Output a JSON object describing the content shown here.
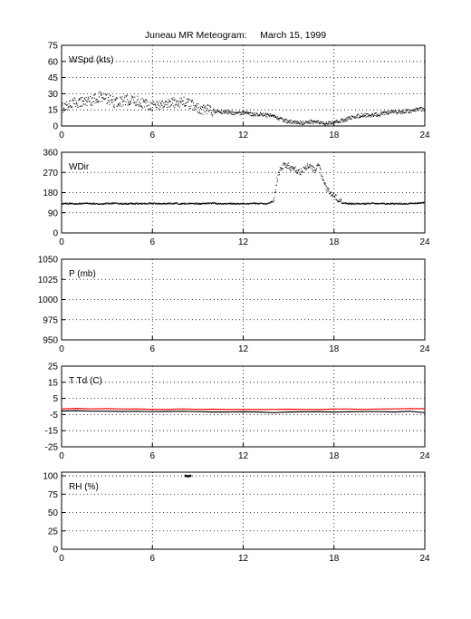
{
  "title": {
    "text": "Juneau MR Meteogram:     March 15, 1999"
  },
  "colors": {
    "axis": "#000000",
    "grid": "#000000",
    "data": "#000000",
    "temperature": "#ff0000",
    "dewpoint": "#000000"
  },
  "chart_data": [
    {
      "type": "scatter",
      "label": "WSpd (kts)",
      "x_ticks": [
        "0",
        "6",
        "12",
        "18",
        "24"
      ],
      "y_ticks": [
        "75",
        "60",
        "45",
        "30",
        "15",
        "0"
      ],
      "xlim": [
        0,
        24
      ],
      "ylim": [
        0,
        75
      ],
      "grid": true,
      "series": [
        {
          "x": [
            0,
            0.5,
            1,
            1.5,
            2,
            2.5,
            3,
            3.5,
            4,
            4.5,
            5,
            5.5,
            6,
            6.5,
            7,
            7.5,
            8,
            8.5,
            9,
            9.5,
            10,
            10.5,
            11,
            11.5,
            12,
            12.5,
            13,
            13.5,
            14,
            14.5,
            15,
            15.5,
            16,
            16.5,
            17,
            17.5,
            18,
            18.5,
            19,
            19.5,
            20,
            20.5,
            21,
            21.5,
            22,
            22.5,
            23,
            23.5,
            24
          ],
          "y": [
            17,
            20,
            22,
            23,
            24,
            27,
            25,
            22,
            23,
            24,
            23,
            21,
            19,
            20,
            21,
            22,
            23,
            20,
            17,
            15,
            14,
            13,
            13,
            12,
            12,
            11,
            11,
            10,
            9,
            6,
            4,
            3,
            3,
            4,
            3,
            2,
            3,
            5,
            7,
            9,
            10,
            10,
            11,
            12,
            13,
            13,
            14,
            15,
            16
          ]
        }
      ]
    },
    {
      "type": "scatter",
      "label": "WDir",
      "x_ticks": [
        "0",
        "6",
        "12",
        "18",
        "24"
      ],
      "y_ticks": [
        "360",
        "270",
        "180",
        "90",
        "0"
      ],
      "xlim": [
        0,
        24
      ],
      "ylim": [
        0,
        360
      ],
      "grid": true,
      "series": [
        {
          "x": [
            0,
            0.5,
            1,
            1.5,
            2,
            2.5,
            3,
            3.5,
            4,
            4.5,
            5,
            5.5,
            6,
            6.5,
            7,
            7.5,
            8,
            8.5,
            9,
            9.5,
            10,
            10.5,
            11,
            11.5,
            12,
            12.5,
            13,
            13.5,
            14,
            14.25,
            14.5,
            14.75,
            15,
            15.25,
            15.5,
            15.75,
            16,
            16.25,
            16.5,
            16.75,
            17,
            17.25,
            17.5,
            17.75,
            18,
            18.25,
            18.5,
            19,
            19.5,
            20,
            20.5,
            21,
            21.5,
            22,
            22.5,
            23,
            23.5,
            24
          ],
          "y": [
            130,
            131,
            130,
            132,
            131,
            130,
            131,
            132,
            130,
            131,
            130,
            131,
            132,
            130,
            131,
            132,
            130,
            131,
            130,
            131,
            132,
            130,
            131,
            130,
            131,
            132,
            131,
            130,
            140,
            240,
            290,
            305,
            300,
            285,
            280,
            270,
            285,
            300,
            295,
            280,
            310,
            240,
            200,
            180,
            170,
            150,
            135,
            130,
            131,
            130,
            132,
            131,
            130,
            131,
            130,
            131,
            132,
            135
          ]
        }
      ]
    },
    {
      "type": "line",
      "label": "P (mb)",
      "x_ticks": [
        "0",
        "6",
        "12",
        "18",
        "24"
      ],
      "y_ticks": [
        "1050",
        "1025",
        "1000",
        "975",
        "950"
      ],
      "xlim": [
        0,
        24
      ],
      "ylim": [
        950,
        1050
      ],
      "grid": true,
      "series": []
    },
    {
      "type": "line",
      "label": "T Td (C)",
      "x_ticks": [
        "0",
        "6",
        "12",
        "18",
        "24"
      ],
      "y_ticks": [
        "25",
        "15",
        "5",
        "-5",
        "-15",
        "-25"
      ],
      "xlim": [
        0,
        24
      ],
      "ylim": [
        -25,
        25
      ],
      "grid": true,
      "series": [
        {
          "role": "temperature",
          "x": [
            0,
            1,
            2,
            3,
            4,
            5,
            6,
            7,
            8,
            9,
            10,
            11,
            12,
            13,
            14,
            15,
            16,
            17,
            18,
            19,
            20,
            21,
            22,
            23,
            24
          ],
          "y": [
            -1.5,
            -1.2,
            -1.5,
            -1.3,
            -1.6,
            -1.5,
            -1.8,
            -1.8,
            -1.5,
            -1.8,
            -1.7,
            -1.9,
            -1.8,
            -1.9,
            -1.8,
            -1.7,
            -1.8,
            -1.9,
            -1.6,
            -1.6,
            -1.8,
            -1.6,
            -1.5,
            -1.3,
            -1.4
          ]
        },
        {
          "role": "dewpoint",
          "x": [
            0,
            1,
            2,
            3,
            4,
            5,
            6,
            7,
            8,
            9,
            10,
            11,
            12,
            13,
            14,
            15,
            16,
            17,
            18,
            19,
            20,
            21,
            22,
            23,
            24
          ],
          "y": [
            -2.8,
            -2.6,
            -2.9,
            -2.9,
            -3.1,
            -3.0,
            -3.2,
            -3.1,
            -3.0,
            -3.2,
            -3.4,
            -3.4,
            -3.3,
            -3.4,
            -3.8,
            -3.4,
            -3.3,
            -3.3,
            -3.4,
            -3.3,
            -3.2,
            -3.2,
            -3.4,
            -3.0,
            -3.8
          ]
        }
      ]
    },
    {
      "type": "scatter",
      "label": "RH (%)",
      "x_ticks": [
        "0",
        "6",
        "12",
        "18",
        "24"
      ],
      "y_ticks": [
        "100",
        "75",
        "50",
        "25",
        "0"
      ],
      "xlim": [
        0,
        24
      ],
      "ylim": [
        0,
        105
      ],
      "grid": true,
      "series": [
        {
          "x": [
            8.2,
            8.35,
            8.5
          ],
          "y": [
            100,
            99.5,
            100
          ]
        }
      ]
    }
  ]
}
